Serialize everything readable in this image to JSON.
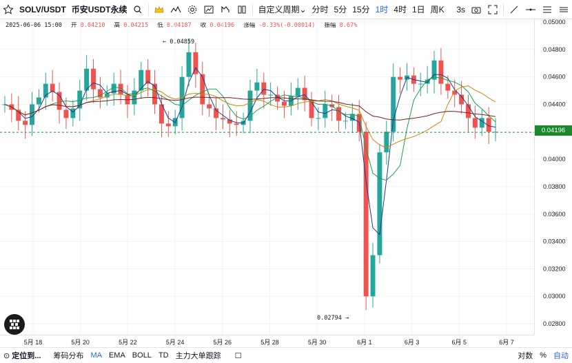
{
  "toolbar": {
    "symbol": "SOLV/USDT",
    "exchange": "币安USDT永续",
    "custom_period": "自定义周期",
    "intervals": [
      "分时",
      "5分",
      "15分",
      "1时",
      "4时",
      "1日",
      "周K"
    ],
    "active_interval": "1时",
    "refresh": "3s"
  },
  "ohlc": {
    "date": "2025-06-06 15:00",
    "open_label": "开",
    "open": "0.04210",
    "high_label": "高",
    "high": "0.04215",
    "low_label": "低",
    "low": "0.04187",
    "close_label": "收",
    "close": "0.04196",
    "change_label": "涨幅",
    "change": "-0.33%(-0.00014)",
    "amp_label": "振幅",
    "amp": "0.67%"
  },
  "annotations": {
    "high": "0.04859",
    "low": "0.02794"
  },
  "last_price": "0.04196",
  "y_ticks": [
    "0.05000",
    "0.04800",
    "0.04600",
    "0.04400",
    "0.04000",
    "0.03800",
    "0.03600",
    "0.03400",
    "0.03200",
    "0.03000",
    "0.02800"
  ],
  "x_ticks": [
    "5月 18",
    "5月 20",
    "5月 22",
    "5月 24",
    "5月 26",
    "5月 28",
    "5月 30",
    "6月 1",
    "6月 3",
    "6月 5",
    "6月 7"
  ],
  "bottom": {
    "locate": "定位到...",
    "items": [
      "筹码分布",
      "MA",
      "EMA",
      "BOLL",
      "TD",
      "主力大单跟踪"
    ],
    "active_item": "MA",
    "right": [
      "对数",
      "%",
      "自动"
    ]
  },
  "chart_data": {
    "type": "candlestick",
    "ylim": [
      0.0272,
      0.0502
    ],
    "last_price": 0.04196,
    "series_close": [
      0.044,
      0.0436,
      0.0428,
      0.0425,
      0.044,
      0.0445,
      0.0455,
      0.0449,
      0.0436,
      0.043,
      0.0437,
      0.045,
      0.0466,
      0.0451,
      0.0445,
      0.0448,
      0.0455,
      0.0447,
      0.044,
      0.045,
      0.0465,
      0.0455,
      0.044,
      0.0426,
      0.0424,
      0.043,
      0.046,
      0.0478,
      0.0462,
      0.044,
      0.0437,
      0.043,
      0.0429,
      0.0426,
      0.0425,
      0.0428,
      0.045,
      0.0456,
      0.0447,
      0.0447,
      0.0442,
      0.0439,
      0.0446,
      0.0452,
      0.0443,
      0.043,
      0.043,
      0.044,
      0.0438,
      0.0428,
      0.0428,
      0.0433,
      0.042,
      0.03,
      0.033,
      0.0405,
      0.042,
      0.046,
      0.0458,
      0.0461,
      0.0455,
      0.0455,
      0.0458,
      0.0472,
      0.0455,
      0.045,
      0.0447,
      0.044,
      0.043,
      0.0423,
      0.043,
      0.042,
      0.042
    ]
  }
}
